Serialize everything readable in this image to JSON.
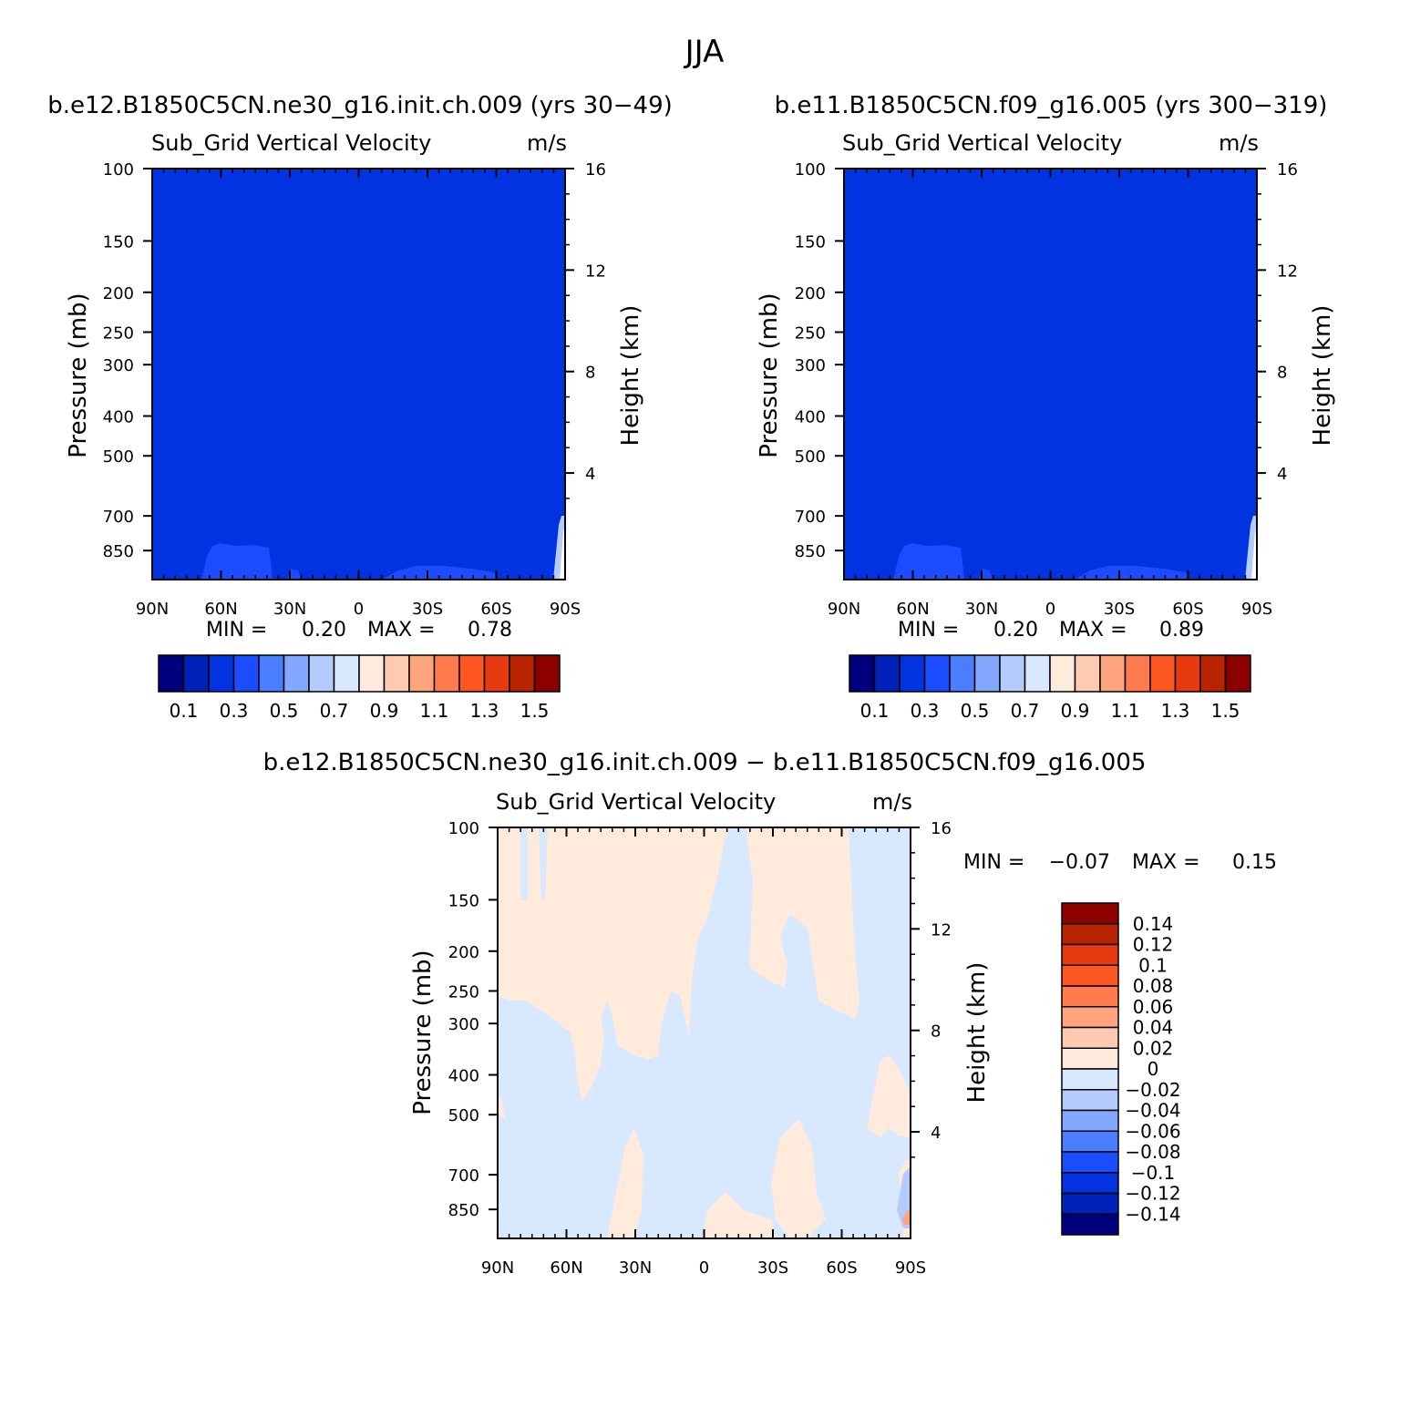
{
  "page_title": "JJA",
  "colors": {
    "top_scale": [
      "#00007f",
      "#0022b8",
      "#0233e0",
      "#1c4cff",
      "#4a7dff",
      "#84a8ff",
      "#b4cbff",
      "#d7e8ff",
      "#ffeadb",
      "#ffcab1",
      "#ffa47c",
      "#ff7a4c",
      "#ff5722",
      "#e73a10",
      "#b82300",
      "#8c0000"
    ],
    "diff_scale": [
      "#00007f",
      "#0022b8",
      "#0233e0",
      "#1c4cff",
      "#4a7dff",
      "#84a8ff",
      "#b4cbff",
      "#d7e8ff",
      "#ffeadb",
      "#ffcab1",
      "#ffa47c",
      "#ff7a4c",
      "#ff5722",
      "#e73a10",
      "#b82300",
      "#8c0000"
    ],
    "field_fill": "#0233e0",
    "near_surface_fill": "#1c4cff"
  },
  "chart_data": [
    {
      "type": "heatmap",
      "title": "b.e12.B1850C5CN.ne30_g16.init.ch.009 (yrs 30−49)",
      "subtitle_left": "Sub_Grid Vertical Velocity",
      "units": "m/s",
      "xlabel": "",
      "ylabel": "Pressure (mb)",
      "ylabel_right": "Height (km)",
      "x_ticks": [
        "90N",
        "60N",
        "30N",
        "0",
        "30S",
        "60S",
        "90S"
      ],
      "y_ticks": [
        "100",
        "150",
        "200",
        "250",
        "300",
        "400",
        "500",
        "700",
        "850"
      ],
      "y_ticks_right": [
        "16",
        "12",
        "8",
        "4"
      ],
      "y_scale": "log",
      "ylim": [
        100,
        1000
      ],
      "field": "mostly 0.2-0.3 m/s; 0.3-0.4 m/s near surface",
      "min_label": "MIN =",
      "min_value": "0.20",
      "max_label": "MAX =",
      "max_value": "0.78",
      "colorbar_labels": [
        "0.1",
        "0.3",
        "0.5",
        "0.7",
        "0.9",
        "1.1",
        "1.3",
        "1.5"
      ]
    },
    {
      "type": "heatmap",
      "title": "b.e11.B1850C5CN.f09_g16.005 (yrs 300−319)",
      "subtitle_left": "Sub_Grid Vertical Velocity",
      "units": "m/s",
      "xlabel": "",
      "ylabel": "Pressure (mb)",
      "ylabel_right": "Height (km)",
      "x_ticks": [
        "90N",
        "60N",
        "30N",
        "0",
        "30S",
        "60S",
        "90S"
      ],
      "y_ticks": [
        "100",
        "150",
        "200",
        "250",
        "300",
        "400",
        "500",
        "700",
        "850"
      ],
      "y_ticks_right": [
        "16",
        "12",
        "8",
        "4"
      ],
      "y_scale": "log",
      "ylim": [
        100,
        1000
      ],
      "field": "mostly 0.2-0.3 m/s; 0.3-0.4 m/s near surface",
      "min_label": "MIN =",
      "min_value": "0.20",
      "max_label": "MAX =",
      "max_value": "0.89",
      "colorbar_labels": [
        "0.1",
        "0.3",
        "0.5",
        "0.7",
        "0.9",
        "1.1",
        "1.3",
        "1.5"
      ]
    },
    {
      "type": "heatmap",
      "title": "b.e12.B1850C5CN.ne30_g16.init.ch.009 − b.e11.B1850C5CN.f09_g16.005",
      "subtitle_left": "Sub_Grid Vertical Velocity",
      "units": "m/s",
      "xlabel": "",
      "ylabel": "Pressure (mb)",
      "ylabel_right": "Height (km)",
      "x_ticks": [
        "90N",
        "60N",
        "30N",
        "0",
        "30S",
        "60S",
        "90S"
      ],
      "y_ticks": [
        "100",
        "150",
        "200",
        "250",
        "300",
        "400",
        "500",
        "700",
        "850"
      ],
      "y_ticks_right": [
        "16",
        "12",
        "8",
        "4"
      ],
      "y_scale": "log",
      "ylim": [
        100,
        1000
      ],
      "field": "differences mostly between -0.02 and 0.02 m/s",
      "min_label": "MIN =",
      "min_value": "−0.07",
      "max_label": "MAX =",
      "max_value": "0.15",
      "colorbar_labels": [
        "0.14",
        "0.12",
        "0.1",
        "0.08",
        "0.06",
        "0.04",
        "0.02",
        "0",
        "−0.02",
        "−0.04",
        "−0.06",
        "−0.08",
        "−0.1",
        "−0.12",
        "−0.14"
      ]
    }
  ]
}
